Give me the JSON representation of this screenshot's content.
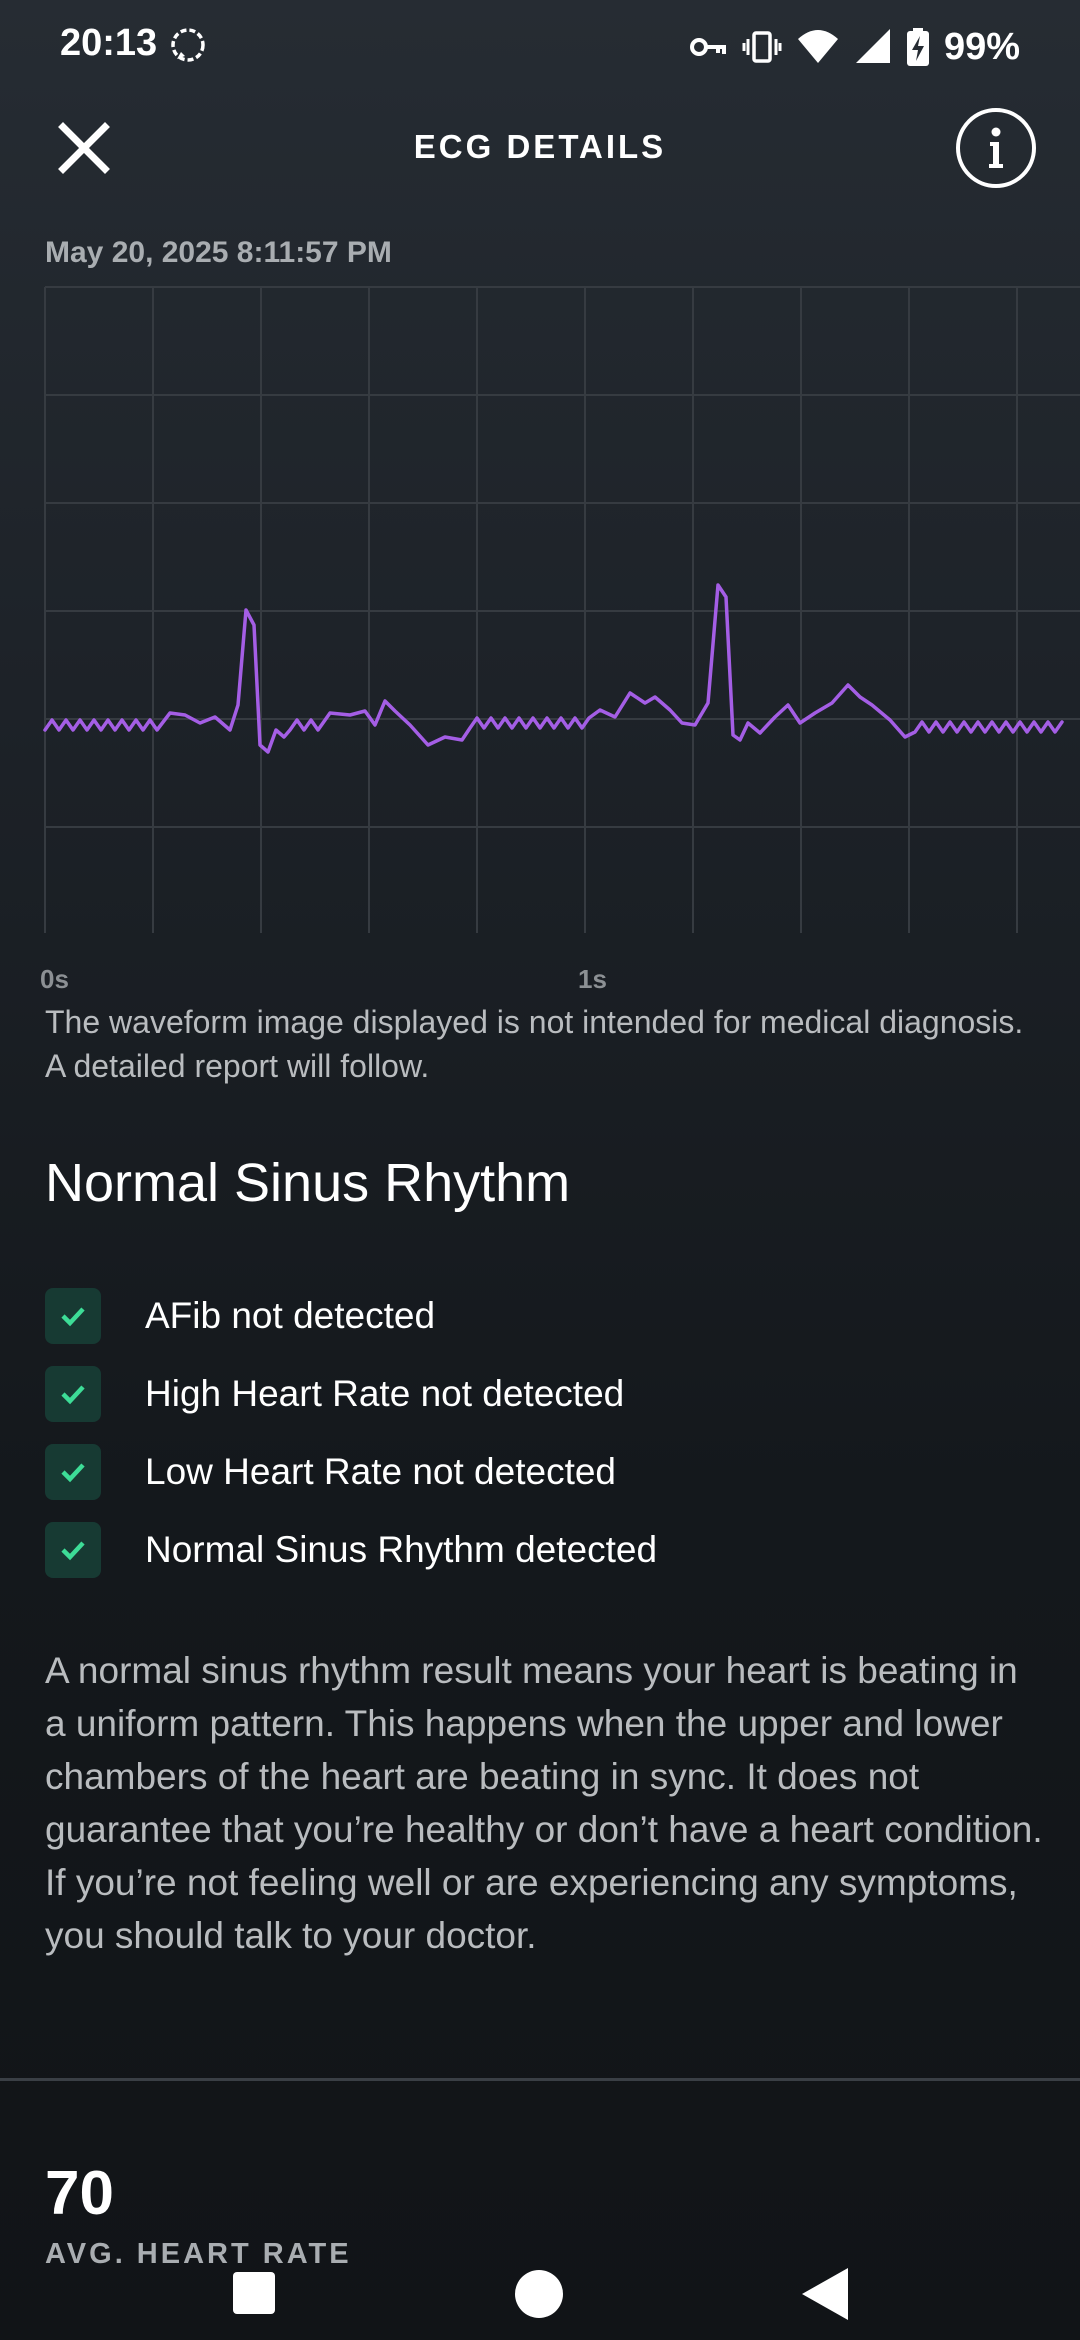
{
  "status_bar": {
    "time": "20:13",
    "battery": "99%",
    "icons": [
      "message-icon",
      "vpn-key-icon",
      "vibrate-icon",
      "wifi-icon",
      "cell-signal-icon",
      "battery-charging-icon"
    ]
  },
  "header": {
    "title": "ECG DETAILS",
    "close_icon": "close-icon",
    "info_icon": "info-icon"
  },
  "recording": {
    "timestamp": "May 20, 2025 8:11:57 PM"
  },
  "ecg": {
    "axis_start_label": "0s",
    "axis_mid_label": "1s",
    "waveform_color": "#a45ee5",
    "grid_color": "#363b41",
    "disclaimer": "The waveform image displayed is not intended for medical diagnosis. A detailed report will follow."
  },
  "result": {
    "title": "Normal Sinus Rhythm",
    "checks": [
      {
        "label": "AFib not detected"
      },
      {
        "label": "High Heart Rate not detected"
      },
      {
        "label": "Low Heart Rate not detected"
      },
      {
        "label": "Normal Sinus Rhythm detected"
      }
    ],
    "check_color": "#3ddc97",
    "explanation": "A normal sinus rhythm result means your heart is beating in a uniform pattern. This happens when the upper and lower chambers of the heart are beating in sync. It does not guarantee that you’re healthy or don’t have a heart condition. If you’re not feeling well or are experiencing any symptoms, you should talk to your doctor."
  },
  "heart_rate": {
    "value": "70",
    "label": "AVG. HEART RATE"
  },
  "nav_bar": {
    "recents_icon": "square-recents-icon",
    "home_icon": "circle-home-icon",
    "back_icon": "triangle-back-icon"
  }
}
